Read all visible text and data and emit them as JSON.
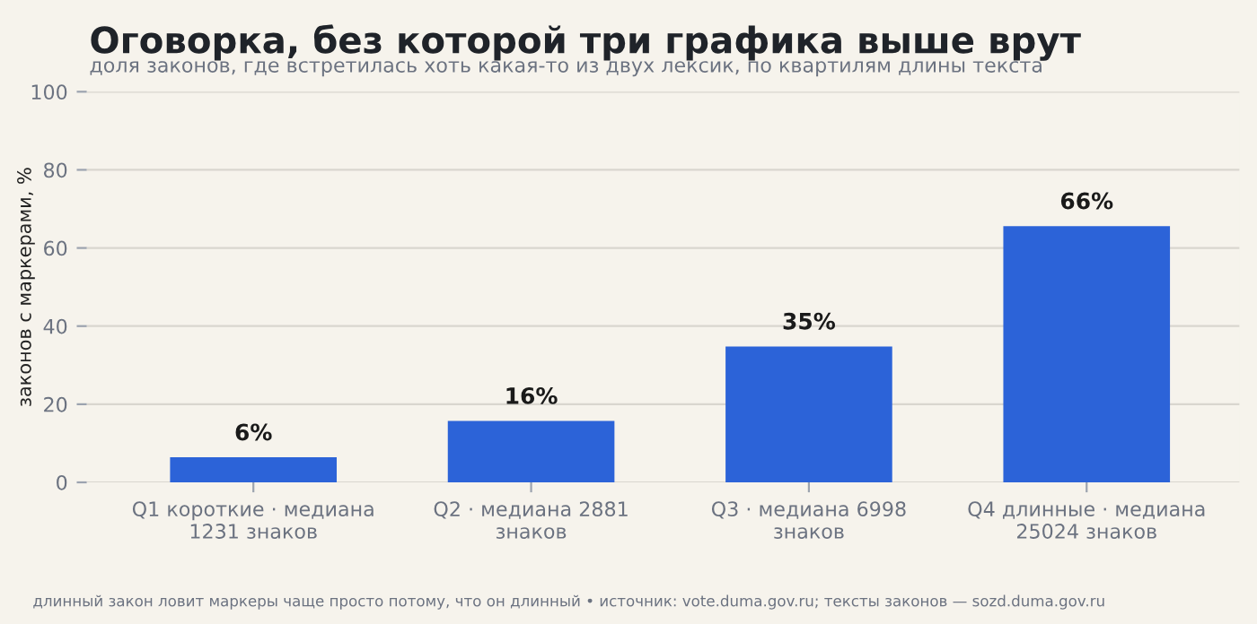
{
  "chart_data": {
    "type": "bar",
    "title": "Оговорка, без которой три графика выше врут",
    "subtitle": "доля законов, где встретилась хоть какая-то из двух лексик, по квартилям длины текста",
    "ylabel": "законов с маркерами, %",
    "categories": [
      "Q1 короткие · медиана\n1231 знаков",
      "Q2 · медиана 2881\nзнаков",
      "Q3 · медиана 6998\nзнаков",
      "Q4 длинные · медиана\n25024 знаков"
    ],
    "values": [
      6.4,
      15.7,
      34.8,
      65.6
    ],
    "value_labels": [
      "6%",
      "16%",
      "35%",
      "66%"
    ],
    "color": "#2c63d8",
    "ylim": [
      0,
      100
    ],
    "yticks": [
      0,
      20,
      40,
      60,
      80,
      100
    ],
    "grid": "y",
    "legend": false,
    "annotations": [
      "длинный закон ловит маркеры чаще просто потому, что он длинный • источник: vote.duma.gov.ru; тексты законов — sozd.duma.gov.ru"
    ]
  }
}
